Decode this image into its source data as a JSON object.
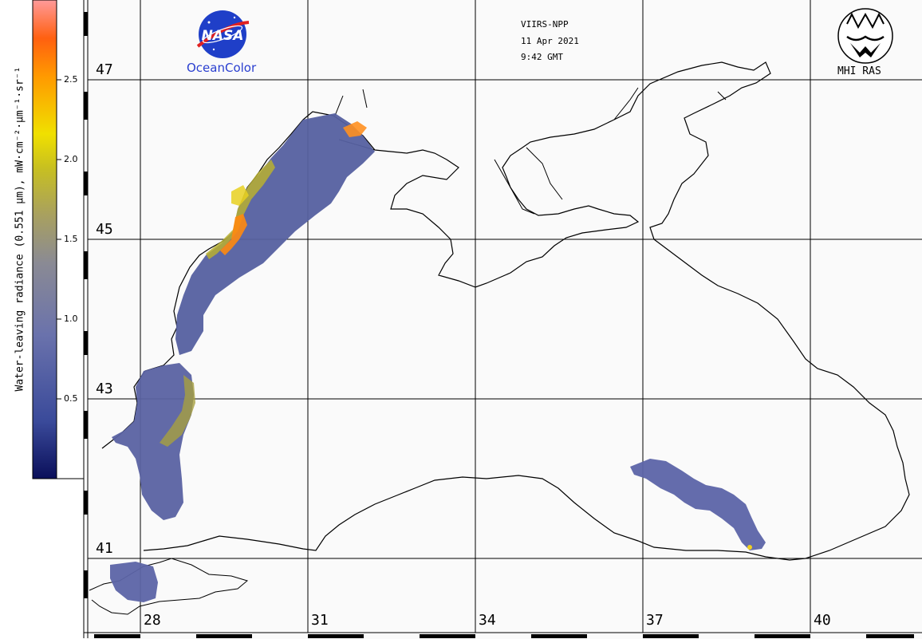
{
  "satellite": "VIIRS-NPP",
  "date": "11 Apr 2021",
  "time": "9:42 GMT",
  "logos": {
    "nasa_text": "NASA",
    "ocean_color": "OceanColor",
    "mhi": "MHI RAS"
  },
  "colorbar": {
    "title": "Water-leaving radiance (0.551 µm), mW·cm⁻²·µm⁻¹·sr⁻¹",
    "ticks": [
      "2.5",
      "2.0",
      "1.5",
      "1.0",
      "0.5"
    ],
    "colors": [
      "#0a0f5a",
      "#3a4a9a",
      "#6a72ac",
      "#8a8a94",
      "#a8a060",
      "#c8c020",
      "#f0e000",
      "#ff9a00",
      "#ff6010",
      "#ff9a9a"
    ]
  },
  "latitudes": [
    "47",
    "45",
    "43",
    "41"
  ],
  "longitudes": [
    "28",
    "31",
    "34",
    "37",
    "40"
  ]
}
